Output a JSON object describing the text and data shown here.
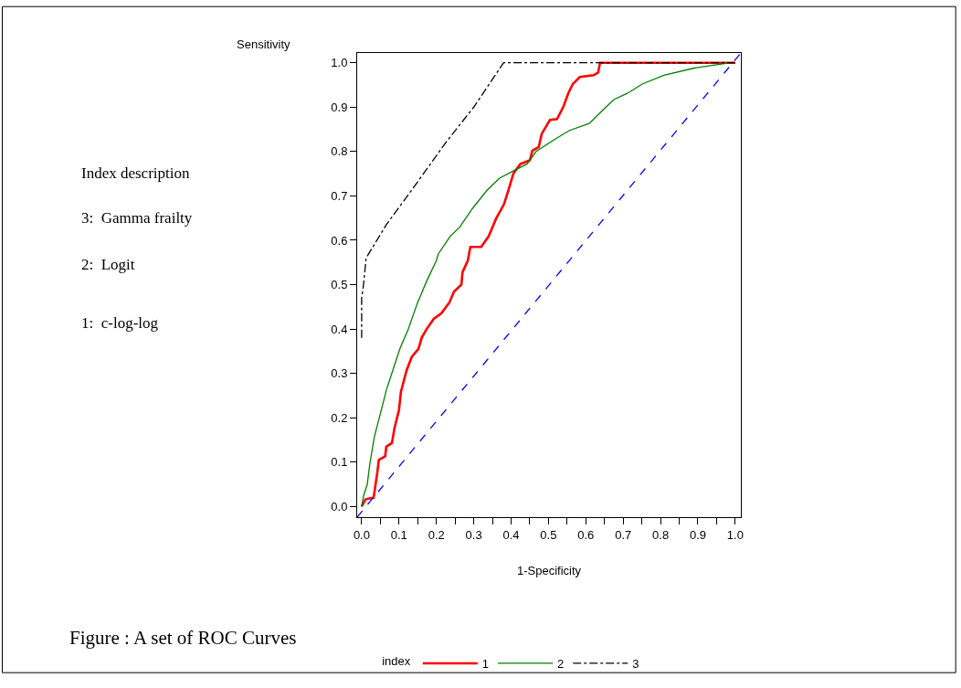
{
  "chart_data": {
    "type": "line",
    "xlabel": "1-Specificity",
    "ylabel": "Sensitivity",
    "legend_title": "index",
    "legend": "bottom",
    "grid": false,
    "marker": "none",
    "annotations": [
      "Index description",
      "3:  Gamma frailty",
      "2:  Logit",
      "1:  c-log-log",
      "Figure : A set of ROC Curves"
    ],
    "xlim": [
      -0.012,
      1.015
    ],
    "ylim": [
      -0.024,
      1.022
    ],
    "xticks": [
      {
        "value": 0,
        "label": "0.0"
      },
      {
        "value": 0.05,
        "label": null
      },
      {
        "value": 0.1,
        "label": "0.1"
      },
      {
        "value": 0.15,
        "label": null
      },
      {
        "value": 0.2,
        "label": "0.2"
      },
      {
        "value": 0.25,
        "label": null
      },
      {
        "value": 0.3,
        "label": "0.3"
      },
      {
        "value": 0.35,
        "label": null
      },
      {
        "value": 0.4,
        "label": "0.4"
      },
      {
        "value": 0.45,
        "label": null
      },
      {
        "value": 0.5,
        "label": "0.5"
      },
      {
        "value": 0.55,
        "label": null
      },
      {
        "value": 0.6,
        "label": "0.6"
      },
      {
        "value": 0.65,
        "label": null
      },
      {
        "value": 0.7,
        "label": "0.7"
      },
      {
        "value": 0.75,
        "label": null
      },
      {
        "value": 0.8,
        "label": "0.8"
      },
      {
        "value": 0.85,
        "label": null
      },
      {
        "value": 0.9,
        "label": "0.9"
      },
      {
        "value": 0.95,
        "label": null
      },
      {
        "value": 1,
        "label": "1.0"
      }
    ],
    "yticks": [
      {
        "value": 0,
        "label": "0.0"
      },
      {
        "value": 0.1,
        "label": "0.1"
      },
      {
        "value": 0.2,
        "label": "0.2"
      },
      {
        "value": 0.3,
        "label": "0.3"
      },
      {
        "value": 0.4,
        "label": "0.4"
      },
      {
        "value": 0.5,
        "label": "0.5"
      },
      {
        "value": 0.6,
        "label": "0.6"
      },
      {
        "value": 0.7,
        "label": "0.7"
      },
      {
        "value": 0.8,
        "label": "0.8"
      },
      {
        "value": 0.9,
        "label": "0.9"
      },
      {
        "value": 1,
        "label": "1.0"
      }
    ],
    "series": [
      {
        "name": "1",
        "color": "#ff0000",
        "line_style": "solid",
        "x": [
          0,
          0.01,
          0.032,
          0.042,
          0.046,
          0.063,
          0.066,
          0.081,
          0.088,
          0.1,
          0.105,
          0.12,
          0.134,
          0.152,
          0.161,
          0.174,
          0.193,
          0.213,
          0.235,
          0.247,
          0.267,
          0.27,
          0.284,
          0.291,
          0.32,
          0.34,
          0.36,
          0.381,
          0.394,
          0.406,
          0.425,
          0.45,
          0.457,
          0.474,
          0.482,
          0.504,
          0.523,
          0.54,
          0.553,
          0.565,
          0.584,
          0.621,
          0.633,
          0.638,
          1.0
        ],
        "values": [
          0,
          0.016,
          0.02,
          0.077,
          0.105,
          0.113,
          0.135,
          0.143,
          0.177,
          0.218,
          0.258,
          0.306,
          0.337,
          0.355,
          0.381,
          0.4,
          0.423,
          0.435,
          0.46,
          0.484,
          0.5,
          0.528,
          0.554,
          0.585,
          0.585,
          0.609,
          0.649,
          0.681,
          0.716,
          0.75,
          0.772,
          0.78,
          0.802,
          0.81,
          0.84,
          0.871,
          0.873,
          0.901,
          0.931,
          0.952,
          0.968,
          0.972,
          0.978,
          1.0,
          1.0
        ]
      },
      {
        "name": "2",
        "color": "#008000",
        "line_style": "solid",
        "x": [
          0,
          0.005,
          0.015,
          0.022,
          0.034,
          0.051,
          0.066,
          0.083,
          0.103,
          0.125,
          0.149,
          0.174,
          0.2,
          0.205,
          0.237,
          0.262,
          0.296,
          0.335,
          0.369,
          0.406,
          0.443,
          0.467,
          0.516,
          0.555,
          0.609,
          0.638,
          0.675,
          0.711,
          0.751,
          0.809,
          0.89,
          0.988
        ],
        "values": [
          0,
          0.024,
          0.05,
          0.097,
          0.157,
          0.212,
          0.262,
          0.306,
          0.357,
          0.4,
          0.458,
          0.508,
          0.554,
          0.569,
          0.609,
          0.629,
          0.671,
          0.712,
          0.74,
          0.756,
          0.772,
          0.8,
          0.827,
          0.847,
          0.863,
          0.887,
          0.917,
          0.931,
          0.952,
          0.972,
          0.988,
          1.0
        ]
      },
      {
        "name": "3",
        "color": "#000000",
        "line_style": "dashdot",
        "x": [
          0,
          0,
          0.005,
          0.012,
          0.066,
          0.14,
          0.225,
          0.3,
          0.38,
          1.0
        ],
        "values": [
          0.38,
          0.47,
          0.5,
          0.56,
          0.635,
          0.72,
          0.82,
          0.9,
          1.0,
          1.0
        ]
      },
      {
        "color": "#0000ff",
        "line_style": "dashed",
        "x": [
          -0.012,
          1.015
        ],
        "values": [
          -0.024,
          1.022
        ]
      }
    ]
  }
}
